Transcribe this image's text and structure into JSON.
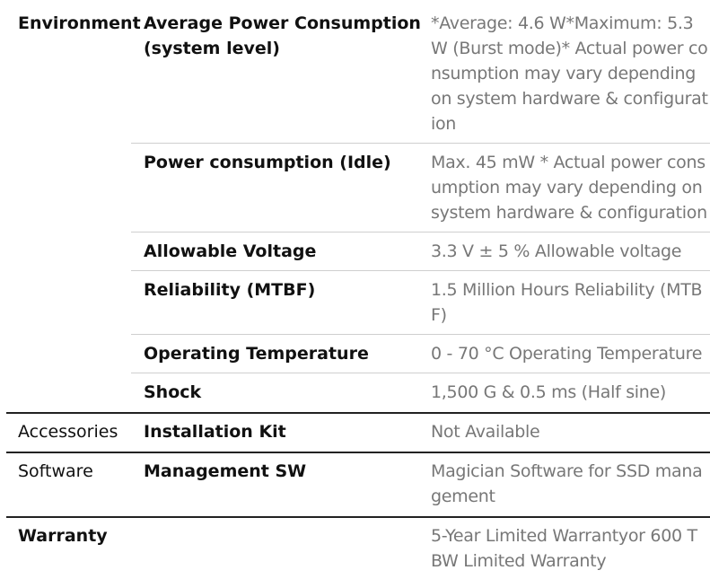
{
  "sections": [
    {
      "category": "Environment",
      "rows": [
        {
          "label": [
            "Average Power Consumption",
            "(system level)"
          ],
          "value": [
            "*Average: 4.6 W*Maximum: 5.3",
            "W (Burst mode)* Actual power co",
            "nsumption may vary depending",
            "on system hardware & configurat",
            "ion"
          ]
        },
        {
          "label": [
            "Power consumption (Idle)"
          ],
          "value": [
            "Max. 45 mW * Actual power cons",
            "umption may vary depending on",
            "system hardware & configuration"
          ]
        },
        {
          "label": [
            "Allowable Voltage"
          ],
          "value": [
            "3.3 V ± 5 % Allowable voltage"
          ]
        },
        {
          "label": [
            "Reliability (MTBF)"
          ],
          "value": [
            "1.5 Million Hours Reliability (MTB",
            "F)"
          ]
        },
        {
          "label": [
            "Operating Temperature"
          ],
          "value": [
            "0 - 70 °C Operating Temperature"
          ]
        },
        {
          "label": [
            "Shock"
          ],
          "value": [
            "1,500 G & 0.5 ms (Half sine)"
          ]
        }
      ]
    },
    {
      "category": "Accessories",
      "rows": [
        {
          "label": [
            "Installation Kit"
          ],
          "value": [
            "Not Available"
          ]
        }
      ]
    },
    {
      "category": "Software",
      "rows": [
        {
          "label": [
            "Management SW"
          ],
          "value": [
            "Magician Software for SSD mana",
            "gement"
          ]
        }
      ]
    },
    {
      "category": "Warranty",
      "rows": [
        {
          "label": [
            ""
          ],
          "value": [
            "5-Year Limited Warrantyor 600 T",
            "BW Limited Warranty"
          ]
        }
      ]
    }
  ]
}
